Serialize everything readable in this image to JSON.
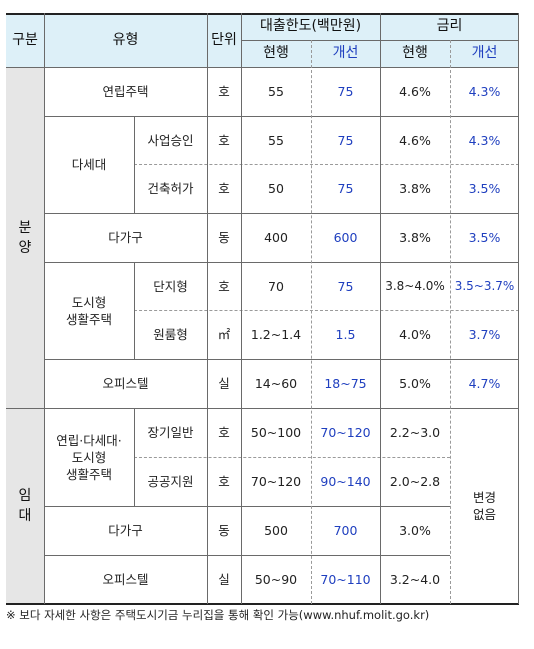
{
  "headers": {
    "category": "구분",
    "type": "유형",
    "unit": "단위",
    "loan_limit": "대출한도(백만원)",
    "interest": "금리",
    "current": "현행",
    "improved": "개선"
  },
  "sections": {
    "sale": "분\n양",
    "rent": "임\n대"
  },
  "rows": [
    {
      "type": "연립주택",
      "sub": "",
      "unit": "호",
      "loan_cur": "55",
      "loan_new": "75",
      "rate_cur": "4.6%",
      "rate_new": "4.3%"
    },
    {
      "type": "다세대",
      "sub": "사업승인",
      "unit": "호",
      "loan_cur": "55",
      "loan_new": "75",
      "rate_cur": "4.6%",
      "rate_new": "4.3%"
    },
    {
      "type": "",
      "sub": "건축허가",
      "unit": "호",
      "loan_cur": "50",
      "loan_new": "75",
      "rate_cur": "3.8%",
      "rate_new": "3.5%"
    },
    {
      "type": "다가구",
      "sub": "",
      "unit": "동",
      "loan_cur": "400",
      "loan_new": "600",
      "rate_cur": "3.8%",
      "rate_new": "3.5%"
    },
    {
      "type": "도시형\n생활주택",
      "sub": "단지형",
      "unit": "호",
      "loan_cur": "70",
      "loan_new": "75",
      "rate_cur": "3.8~4.0%",
      "rate_new": "3.5~3.7%"
    },
    {
      "type": "",
      "sub": "원룸형",
      "unit": "㎡",
      "loan_cur": "1.2~1.4",
      "loan_new": "1.5",
      "rate_cur": "4.0%",
      "rate_new": "3.7%"
    },
    {
      "type": "오피스텔",
      "sub": "",
      "unit": "실",
      "loan_cur": "14~60",
      "loan_new": "18~75",
      "rate_cur": "5.0%",
      "rate_new": "4.7%"
    },
    {
      "type": "연립·다세대·\n도시형\n생활주택",
      "sub": "장기일반",
      "unit": "호",
      "loan_cur": "50~100",
      "loan_new": "70~120",
      "rate_cur": "2.2~3.0",
      "rate_new": ""
    },
    {
      "type": "",
      "sub": "공공지원",
      "unit": "호",
      "loan_cur": "70~120",
      "loan_new": "90~140",
      "rate_cur": "2.0~2.8",
      "rate_new": ""
    },
    {
      "type": "다가구",
      "sub": "",
      "unit": "동",
      "loan_cur": "500",
      "loan_new": "700",
      "rate_cur": "3.0%",
      "rate_new": ""
    },
    {
      "type": "오피스텔",
      "sub": "",
      "unit": "실",
      "loan_cur": "50~90",
      "loan_new": "70~110",
      "rate_cur": "3.2~4.0",
      "rate_new": ""
    }
  ],
  "rent_rate_new_merged": "변경\n없음",
  "footnote": "※ 보다 자세한 사항은 주택도시기금 누리집을 통해 확인 가능(www.nhuf.molit.go.kr)",
  "colors": {
    "header_bg": "#ddf0f8",
    "side_bg": "#e6e6e6",
    "improved_text": "#1f3fbf"
  }
}
